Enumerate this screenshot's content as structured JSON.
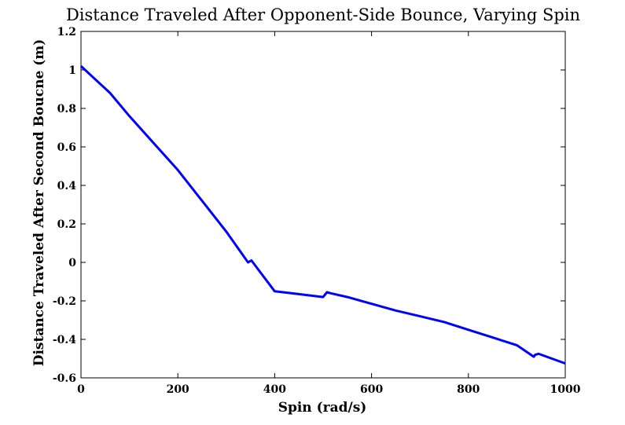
{
  "chart_data": {
    "type": "line",
    "title": "Distance Traveled After Opponent-Side Bounce, Varying Spin",
    "xlabel": "Spin (rad/s)",
    "ylabel": "Distance Traveled After Second Boucne (m)",
    "xlim": [
      0,
      1000
    ],
    "ylim": [
      -0.6,
      1.2
    ],
    "xticks": [
      0,
      200,
      400,
      600,
      800,
      1000
    ],
    "xtick_labels": [
      "0",
      "200",
      "400",
      "600",
      "800",
      "1000"
    ],
    "yticks": [
      -0.6,
      -0.4,
      -0.2,
      0,
      0.2,
      0.4,
      0.6,
      0.8,
      1,
      1.2
    ],
    "ytick_labels": [
      "-0.6",
      "-0.4",
      "-0.2",
      "0",
      "0.2",
      "0.4",
      "0.6",
      "0.8",
      "1",
      "1.2"
    ],
    "grid": false,
    "series": [
      {
        "color": "#0000ff",
        "x": [
          0,
          30,
          60,
          100,
          150,
          200,
          250,
          300,
          345,
          352,
          400,
          450,
          500,
          508,
          515,
          550,
          600,
          650,
          700,
          750,
          800,
          850,
          900,
          935,
          938,
          945,
          1000
        ],
        "y": [
          1.02,
          0.95,
          0.88,
          0.76,
          0.62,
          0.48,
          0.32,
          0.16,
          0.0,
          0.01,
          -0.15,
          -0.165,
          -0.18,
          -0.155,
          -0.16,
          -0.18,
          -0.215,
          -0.25,
          -0.28,
          -0.31,
          -0.35,
          -0.39,
          -0.43,
          -0.49,
          -0.48,
          -0.475,
          -0.525
        ]
      }
    ]
  }
}
